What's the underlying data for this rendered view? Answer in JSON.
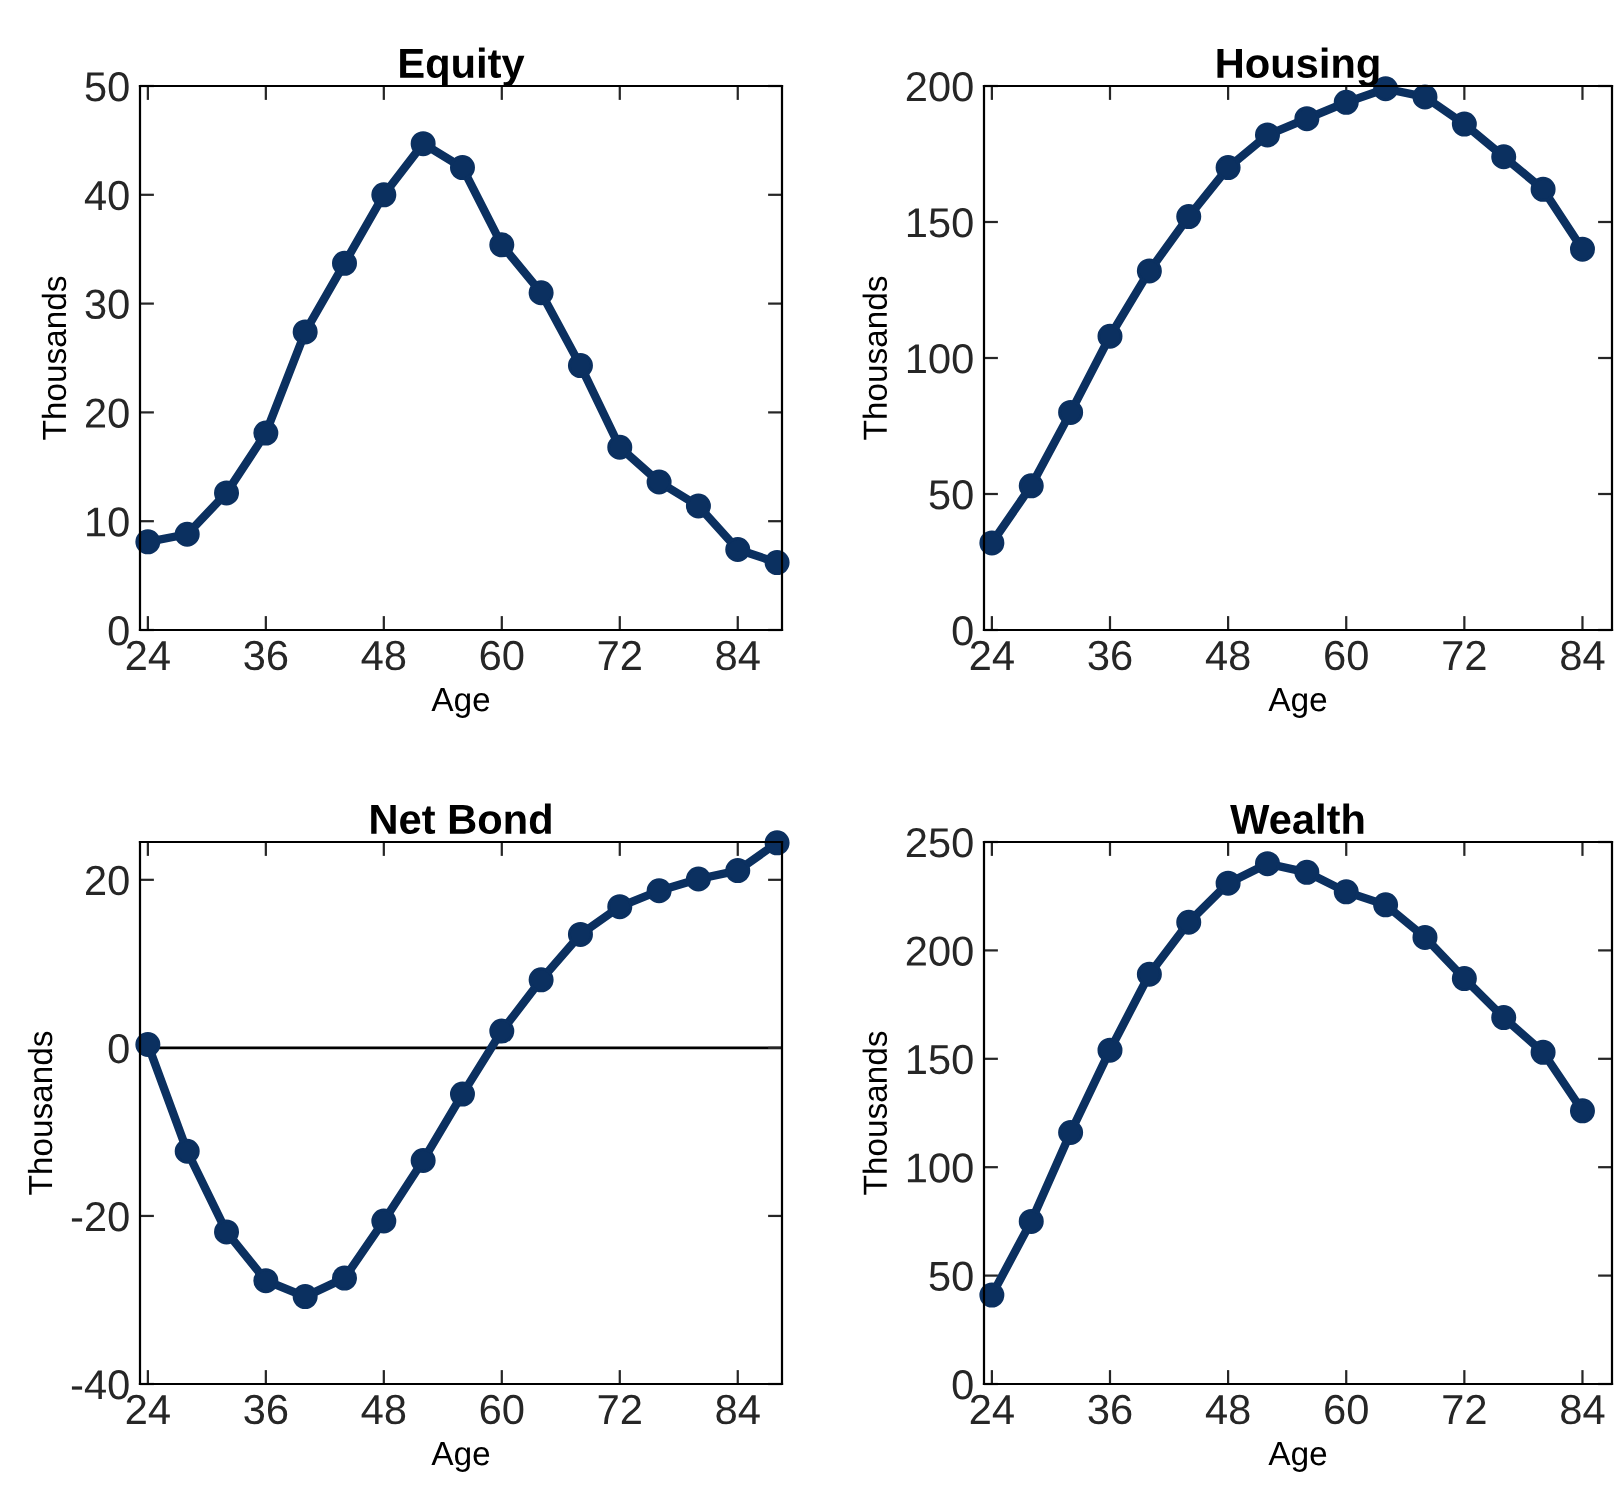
{
  "chart_data": [
    {
      "type": "line",
      "title": "Equity",
      "xlabel": "Age",
      "ylabel": "Thousands",
      "x": [
        24,
        28,
        32,
        36,
        40,
        44,
        48,
        52,
        56,
        60,
        64,
        68,
        72,
        76,
        80,
        84,
        88
      ],
      "series": [
        {
          "color": "#0b3060",
          "values": [
            8.1,
            8.8,
            12.6,
            18.1,
            27.4,
            33.7,
            40.0,
            44.7,
            42.5,
            35.4,
            31.0,
            24.3,
            16.8,
            13.6,
            11.4,
            7.4,
            6.2
          ]
        }
      ],
      "xlim": [
        23.2,
        88.5
      ],
      "xticks": [
        24,
        36,
        48,
        60,
        72,
        84
      ],
      "ylim": [
        0,
        50
      ],
      "yticks": [
        0,
        10,
        20,
        30,
        40,
        50
      ],
      "marker": "circle",
      "grid": false
    },
    {
      "type": "line",
      "title": "Housing",
      "xlabel": "Age",
      "ylabel": "Thousands",
      "x": [
        24,
        28,
        32,
        36,
        40,
        44,
        48,
        52,
        56,
        60,
        64,
        68,
        72,
        76,
        80,
        84
      ],
      "series": [
        {
          "color": "#0b3060",
          "values": [
            32,
            53,
            80,
            108,
            132,
            152,
            170,
            182,
            188,
            194,
            199,
            196,
            186,
            174,
            162,
            140
          ]
        }
      ],
      "xlim": [
        23.2,
        87
      ],
      "xticks": [
        24,
        36,
        48,
        60,
        72,
        84
      ],
      "ylim": [
        0,
        200
      ],
      "yticks": [
        0,
        50,
        100,
        150,
        200
      ],
      "marker": "circle",
      "grid": false
    },
    {
      "type": "line",
      "title": "Net Bond",
      "xlabel": "Age",
      "ylabel": "Thousands",
      "x": [
        24,
        28,
        32,
        36,
        40,
        44,
        48,
        52,
        56,
        60,
        64,
        68,
        72,
        76,
        80,
        84,
        88
      ],
      "series": [
        {
          "color": "#0b3060",
          "values": [
            0.4,
            -12.3,
            -21.9,
            -27.7,
            -29.6,
            -27.4,
            -20.6,
            -13.4,
            -5.5,
            2.0,
            8.1,
            13.5,
            16.8,
            18.7,
            20.1,
            21.1,
            24.4
          ]
        }
      ],
      "xlim": [
        23.2,
        88.5
      ],
      "xticks": [
        24,
        36,
        48,
        60,
        72,
        84
      ],
      "ylim": [
        -40,
        24.5
      ],
      "yticks": [
        -40,
        -20,
        0,
        20
      ],
      "ref_lines": [
        {
          "axis": "y",
          "value": 0,
          "color": "#000000"
        }
      ],
      "marker": "circle",
      "grid": false
    },
    {
      "type": "line",
      "title": "Wealth",
      "xlabel": "Age",
      "ylabel": "Thousands",
      "x": [
        24,
        28,
        32,
        36,
        40,
        44,
        48,
        52,
        56,
        60,
        64,
        68,
        72,
        76,
        80,
        84
      ],
      "series": [
        {
          "color": "#0b3060",
          "values": [
            41,
            75,
            116,
            154,
            189,
            213,
            231,
            240,
            236,
            227,
            221,
            206,
            187,
            169,
            153,
            126
          ]
        }
      ],
      "xlim": [
        23.2,
        87
      ],
      "xticks": [
        24,
        36,
        48,
        60,
        72,
        84
      ],
      "ylim": [
        0,
        250
      ],
      "yticks": [
        0,
        50,
        100,
        150,
        200,
        250
      ],
      "marker": "circle",
      "grid": false
    }
  ]
}
